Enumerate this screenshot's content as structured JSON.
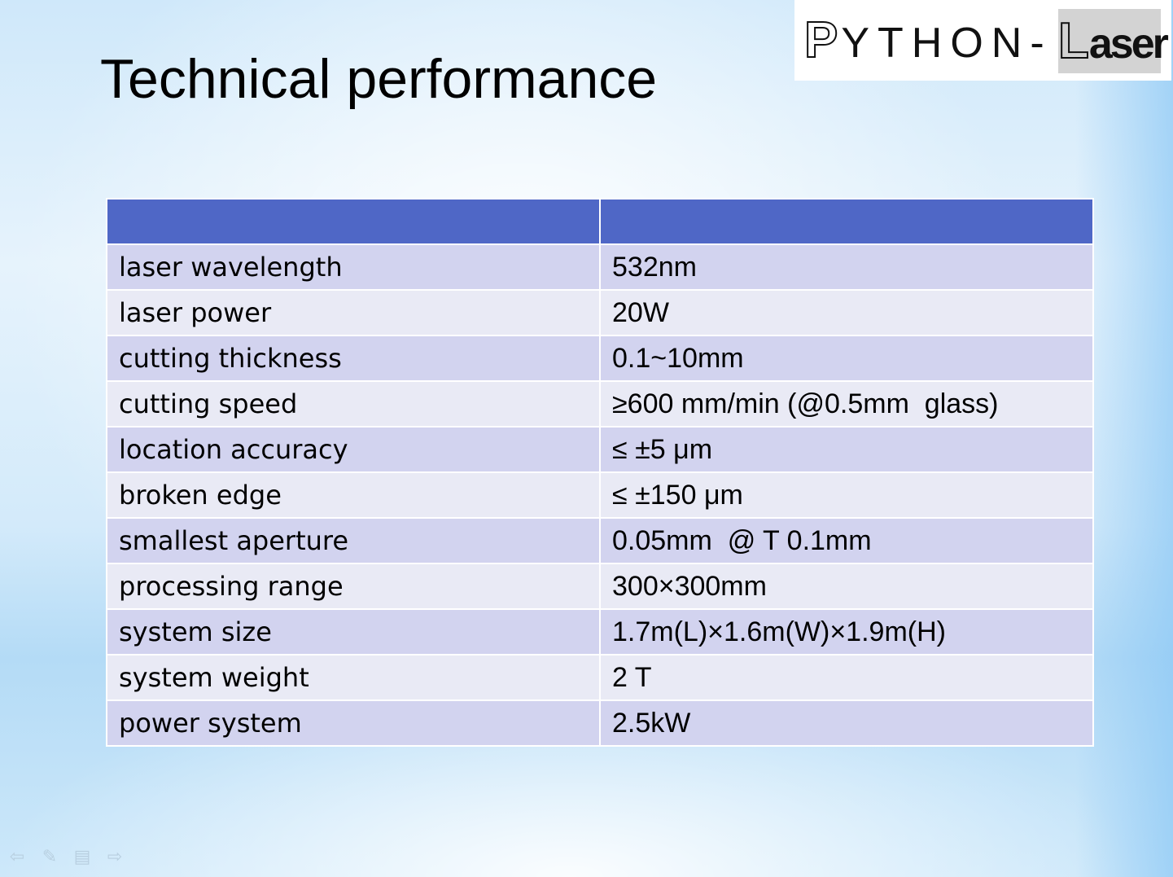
{
  "slide": {
    "title": "Technical performance"
  },
  "logo": {
    "python_first": "P",
    "python_rest": "YTHON-",
    "laser_first": "L",
    "laser_rest": "aser"
  },
  "table": {
    "header": [
      "",
      ""
    ],
    "rows": [
      {
        "parameter": "laser wavelength",
        "value": "532nm"
      },
      {
        "parameter": "laser power",
        "value": "20W"
      },
      {
        "parameter": "cutting thickness",
        "value": "0.1~10mm"
      },
      {
        "parameter": "cutting speed",
        "value": "≥600 mm/min (@0.5mm  glass)"
      },
      {
        "parameter": "location accuracy",
        "value": "≤ ±5 μm"
      },
      {
        "parameter": "broken edge",
        "value": "≤ ±150 μm"
      },
      {
        "parameter": "smallest aperture",
        "value": "0.05mm  @ T 0.1mm"
      },
      {
        "parameter": "processing range",
        "value": "300×300mm"
      },
      {
        "parameter": "system size",
        "value": "1.7m(L)×1.6m(W)×1.9m(H)"
      },
      {
        "parameter": "system weight",
        "value": "2 T"
      },
      {
        "parameter": "power system",
        "value": "2.5kW"
      }
    ]
  },
  "nav": {
    "icons": [
      "back-arrow-icon",
      "pen-icon",
      "menu-icon",
      "forward-arrow-icon"
    ],
    "glyphs": [
      "⇦",
      "✎",
      "▤",
      "⇨"
    ]
  },
  "colors": {
    "header": "#4f67c6",
    "row_odd": "#d2d3ef",
    "row_even": "#e9eaf5"
  }
}
